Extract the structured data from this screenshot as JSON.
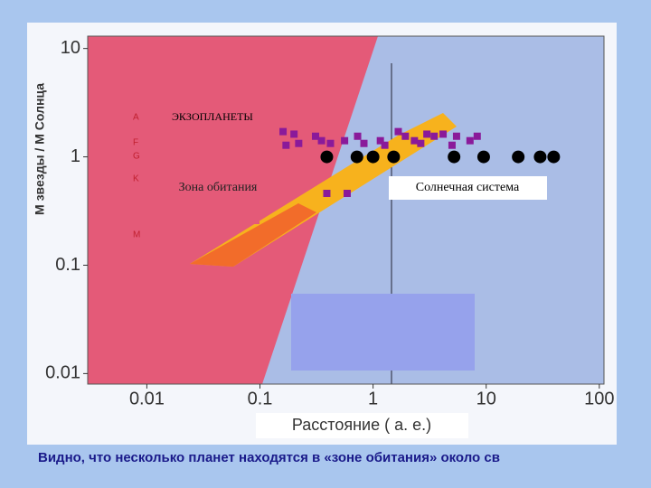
{
  "chart_data": {
    "type": "scatter",
    "y_label": "M звезды / M Солнца",
    "x_label": "Расстояние ( а. е.)",
    "log_x": true,
    "log_y": true,
    "xlim": [
      0.003,
      110
    ],
    "ylim": [
      0.008,
      13
    ],
    "xticks": [
      0.01,
      0.1,
      1,
      10,
      100
    ],
    "yticks": [
      0.01,
      0.1,
      1,
      10
    ],
    "series": [
      {
        "name": "ЭКЗОПЛАНЕТЫ",
        "color": "#8a1a9a",
        "marker": "square",
        "x": [
          0.16,
          0.2,
          0.22,
          0.17,
          0.31,
          0.35,
          0.42,
          0.56,
          0.73,
          0.83,
          1.16,
          1.27,
          1.67,
          1.93,
          2.32,
          2.64,
          2.99,
          3.47,
          4.16,
          4.99,
          5.47,
          7.19,
          8.33,
          0.39,
          0.59
        ],
        "values": [
          1.71,
          1.62,
          1.33,
          1.28,
          1.55,
          1.41,
          1.33,
          1.41,
          1.55,
          1.33,
          1.41,
          1.28,
          1.71,
          1.55,
          1.41,
          1.33,
          1.62,
          1.55,
          1.62,
          1.28,
          1.55,
          1.41,
          1.55,
          0.46,
          0.46
        ]
      },
      {
        "name": "Солнечная система",
        "color": "#000000",
        "marker": "circle",
        "x": [
          0.39,
          0.72,
          1,
          1.52,
          5.2,
          9.5,
          19.2,
          30,
          39.5
        ],
        "values": [
          1,
          1,
          1,
          1,
          1,
          1,
          1,
          1,
          1
        ]
      }
    ],
    "habitable_zone_label": "Зона обитания",
    "spectral_classes": [
      "A",
      "F",
      "G",
      "K",
      "M"
    ]
  },
  "caption": "Видно, что несколько планет находятся в «зоне обитания» около св"
}
